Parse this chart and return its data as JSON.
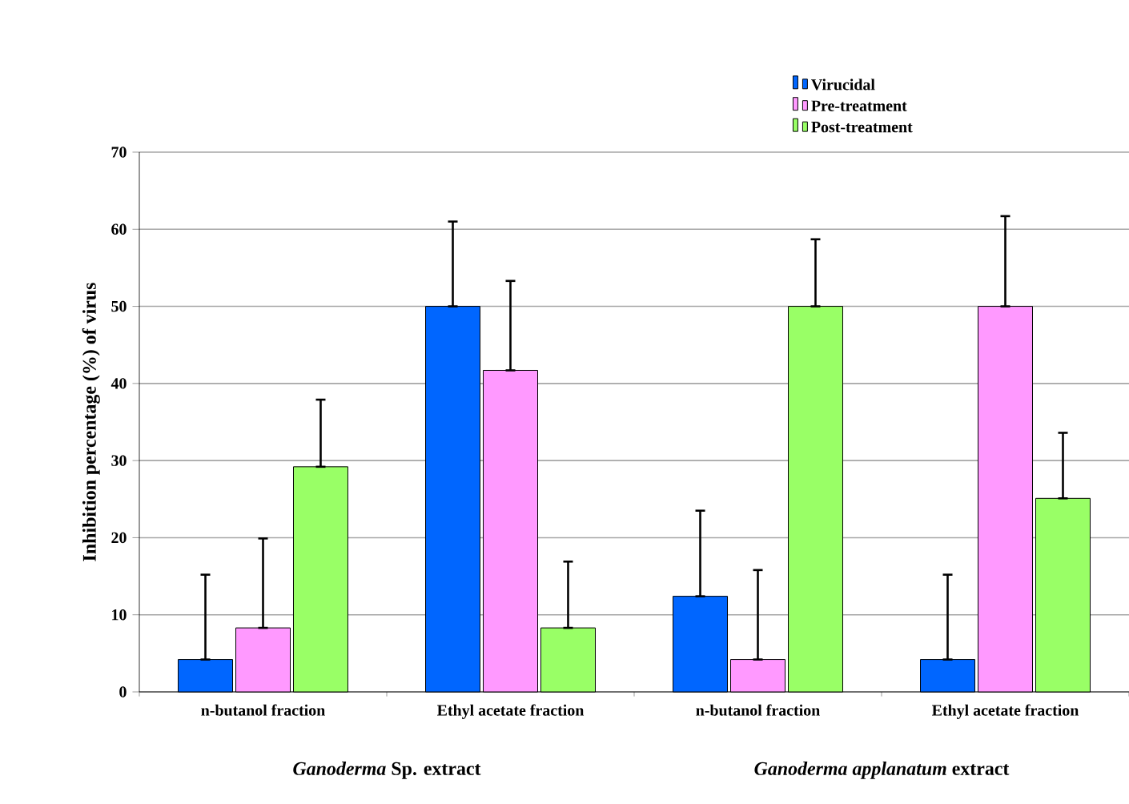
{
  "chart_data": {
    "type": "bar",
    "ylabel": "Inhibition percentage (%) of virus",
    "categories": [
      "n-butanol fraction",
      "Ethyl acetate fraction",
      "n-butanol fraction",
      "Ethyl acetate fraction"
    ],
    "series": [
      {
        "name": "Virucidal",
        "color": "#0066ff",
        "values": [
          4.2,
          50,
          12.4,
          4.2
        ],
        "errors": [
          [
            4.2,
            15.2
          ],
          [
            50,
            61
          ],
          [
            12.4,
            23.5
          ],
          [
            4.2,
            15.2
          ]
        ]
      },
      {
        "name": "Pre-treatment",
        "color": "#ff99ff",
        "values": [
          8.3,
          41.7,
          4.2,
          50
        ],
        "errors": [
          [
            8.3,
            19.9
          ],
          [
            41.7,
            53.3
          ],
          [
            4.2,
            15.8
          ],
          [
            50,
            61.7
          ]
        ]
      },
      {
        "name": "Post-treatment",
        "color": "#99ff66",
        "values": [
          29.2,
          8.3,
          50,
          25.1
        ],
        "errors": [
          [
            29.2,
            37.9
          ],
          [
            8.3,
            16.9
          ],
          [
            50,
            58.7
          ],
          [
            25.1,
            33.6
          ]
        ]
      }
    ],
    "annotations": [
      "*Ganoderma* Sp. extract",
      "*Ganoderma applanatum* extract"
    ],
    "ylim": [
      0,
      70
    ],
    "yticks": [
      0,
      10,
      20,
      30,
      40,
      50,
      60,
      70
    ],
    "grid": "y",
    "legend": "top right"
  }
}
